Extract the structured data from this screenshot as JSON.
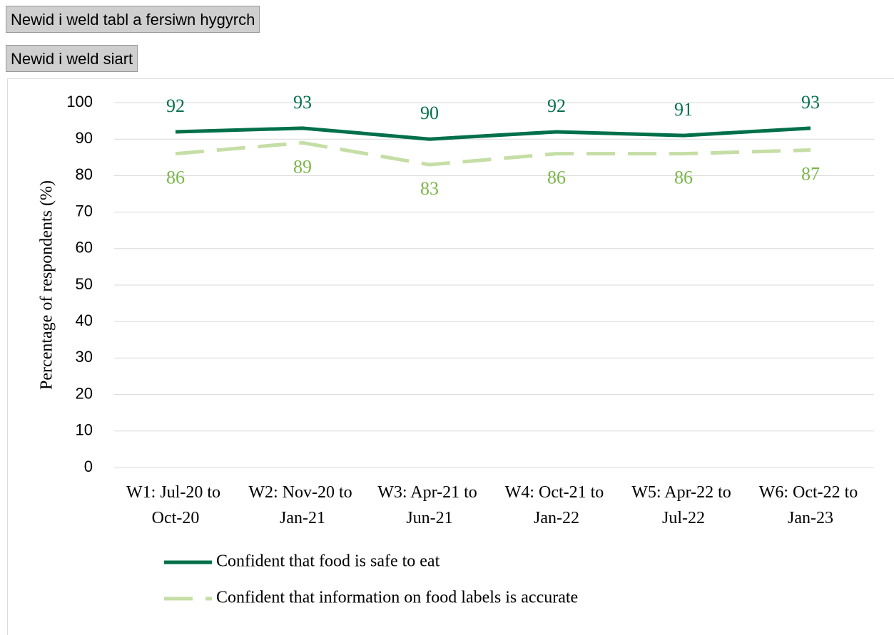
{
  "buttons": [
    "Newid i weld tabl a fersiwn hygyrch",
    "Newid i weld siart"
  ],
  "chart_data": {
    "type": "line",
    "ylabel": "Percentage of respondents (%)",
    "categories": [
      "W1: Jul-20 to Oct-20",
      "W2: Nov-20 to Jan-21",
      "W3: Apr-21 to Jun-21",
      "W4: Oct-21 to Jan-22",
      "W5: Apr-22 to Jul-22",
      "W6: Oct-22 to Jan-23"
    ],
    "series": [
      {
        "name": "Confident that food is safe to eat",
        "color": "#00704a",
        "label_color": "#00704a",
        "dash": false,
        "values": [
          92,
          93,
          90,
          92,
          91,
          93
        ]
      },
      {
        "name": "Confident that information on food labels is accurate",
        "color": "#c5dea6",
        "label_color": "#7ab648",
        "dash": true,
        "values": [
          86,
          89,
          83,
          86,
          86,
          87
        ]
      }
    ],
    "ylim": [
      0,
      100
    ],
    "yticks": [
      0,
      10,
      20,
      30,
      40,
      50,
      60,
      70,
      80,
      90,
      100
    ],
    "grid": true,
    "legend": "bottom"
  }
}
